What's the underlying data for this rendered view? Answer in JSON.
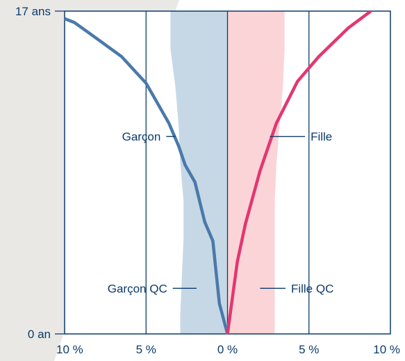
{
  "colors": {
    "page_background": "#ffffff",
    "side_band": "#eae8e5",
    "axis": "#0b3b6b",
    "boy_line": "#4a79ab",
    "girl_line": "#e33770",
    "boy_qc_band": "#c6d8e5",
    "girl_qc_band": "#fbd4d8",
    "text": "#0b3b6b"
  },
  "chart_data": {
    "type": "line",
    "orientation": "horizontal-pyramid",
    "x_unit": "%",
    "y_unit": "age",
    "xlim": [
      -10,
      10
    ],
    "ylim": [
      0,
      17
    ],
    "x_ticks": [
      {
        "value": -10,
        "label": "10 %"
      },
      {
        "value": -5,
        "label": "5 %"
      },
      {
        "value": 0,
        "label": "0 %"
      },
      {
        "value": 5,
        "label": "5 %"
      },
      {
        "value": 10,
        "label": "10 %"
      }
    ],
    "y_ticks": [
      {
        "value": 0,
        "label": "0 an"
      },
      {
        "value": 17,
        "label": "17 ans"
      }
    ],
    "grid": {
      "vertical": true,
      "horizontal": false
    },
    "series": [
      {
        "name": "Garçon",
        "kind": "line",
        "side": "left",
        "color": "#4a79ab",
        "points": [
          {
            "x": -10,
            "y": 16.6
          },
          {
            "x": -9.4,
            "y": 16.4
          },
          {
            "x": -8.1,
            "y": 15.6
          },
          {
            "x": -6.5,
            "y": 14.6
          },
          {
            "x": -5.0,
            "y": 13.2
          },
          {
            "x": -3.6,
            "y": 11.1
          },
          {
            "x": -3.0,
            "y": 9.9
          },
          {
            "x": -2.6,
            "y": 8.9
          },
          {
            "x": -2.0,
            "y": 8.0
          },
          {
            "x": -1.4,
            "y": 5.9
          },
          {
            "x": -0.9,
            "y": 4.9
          },
          {
            "x": -0.5,
            "y": 1.6
          },
          {
            "x": 0.0,
            "y": 0.0
          }
        ]
      },
      {
        "name": "Fille",
        "kind": "line",
        "side": "right",
        "color": "#e33770",
        "points": [
          {
            "x": 0.0,
            "y": 0.0
          },
          {
            "x": 0.6,
            "y": 3.8
          },
          {
            "x": 1.1,
            "y": 5.8
          },
          {
            "x": 2.0,
            "y": 8.6
          },
          {
            "x": 3.0,
            "y": 11.1
          },
          {
            "x": 4.3,
            "y": 13.3
          },
          {
            "x": 5.6,
            "y": 14.6
          },
          {
            "x": 7.4,
            "y": 16.1
          },
          {
            "x": 8.8,
            "y": 17.0
          }
        ]
      },
      {
        "name": "Garçon QC",
        "kind": "band",
        "side": "left",
        "color": "#c6d8e5",
        "points": [
          {
            "x": -3.5,
            "y": 17.0
          },
          {
            "x": -3.5,
            "y": 15.0
          },
          {
            "x": -3.2,
            "y": 13.0
          },
          {
            "x": -3.0,
            "y": 11.0
          },
          {
            "x": -2.9,
            "y": 9.0
          },
          {
            "x": -2.7,
            "y": 7.0
          },
          {
            "x": -2.7,
            "y": 5.0
          },
          {
            "x": -2.8,
            "y": 3.0
          },
          {
            "x": -2.9,
            "y": 1.0
          },
          {
            "x": -2.9,
            "y": 0.0
          }
        ]
      },
      {
        "name": "Fille QC",
        "kind": "band",
        "side": "right",
        "color": "#fbd4d8",
        "points": [
          {
            "x": 3.5,
            "y": 17.0
          },
          {
            "x": 3.5,
            "y": 15.0
          },
          {
            "x": 3.4,
            "y": 13.0
          },
          {
            "x": 3.2,
            "y": 11.0
          },
          {
            "x": 3.0,
            "y": 9.0
          },
          {
            "x": 2.9,
            "y": 7.0
          },
          {
            "x": 2.9,
            "y": 5.0
          },
          {
            "x": 2.9,
            "y": 3.0
          },
          {
            "x": 2.9,
            "y": 1.0
          },
          {
            "x": 2.9,
            "y": 0.0
          }
        ]
      }
    ],
    "annotations": [
      {
        "text": "Garçon",
        "x": -4.1,
        "y": 10.4,
        "anchor": "end",
        "leader_to_x": -3.2
      },
      {
        "text": "Fille",
        "x": 5.1,
        "y": 10.4,
        "anchor": "start",
        "leader_to_x": 2.6
      },
      {
        "text": "Garçon QC",
        "x": -3.7,
        "y": 2.4,
        "anchor": "end",
        "leader_to_x": -1.9
      },
      {
        "text": "Fille QC",
        "x": 3.9,
        "y": 2.4,
        "anchor": "start",
        "leader_to_x": 2.0
      }
    ]
  }
}
